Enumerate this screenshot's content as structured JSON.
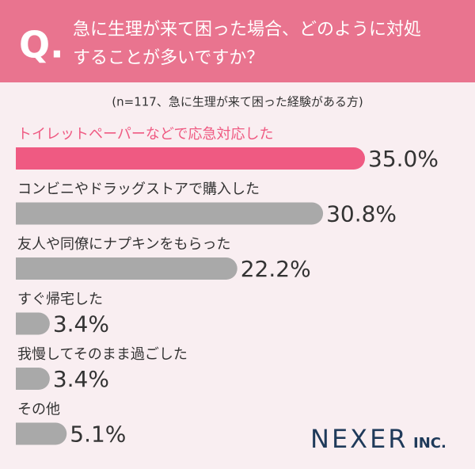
{
  "chart_data": {
    "type": "hbar",
    "question_mark": "Q.",
    "title": [
      "急に生理が来て困った場合、どのように対処",
      "することが多いですか？"
    ],
    "subtitle": "(n=117、急に生理が来て困った経験がある方)",
    "categories": [
      "トイレットペーパーなどで応急対応した",
      "コンビニやドラッグストアで購入した",
      "友人や同僚にナプキンをもらった",
      "すぐ帰宅した",
      "我慢してそのまま過ごした",
      "その他"
    ],
    "values": [
      35.0,
      30.8,
      22.2,
      3.4,
      3.4,
      5.1
    ],
    "value_labels": [
      "35.0%",
      "30.8%",
      "22.2%",
      "3.4%",
      "3.4%",
      "5.1%"
    ],
    "colors": [
      "#ef5a82",
      "#a9a9a9",
      "#a9a9a9",
      "#a9a9a9",
      "#a9a9a9",
      "#a9a9a9"
    ],
    "logo": "NEXER",
    "logo_suffix": "INC."
  }
}
